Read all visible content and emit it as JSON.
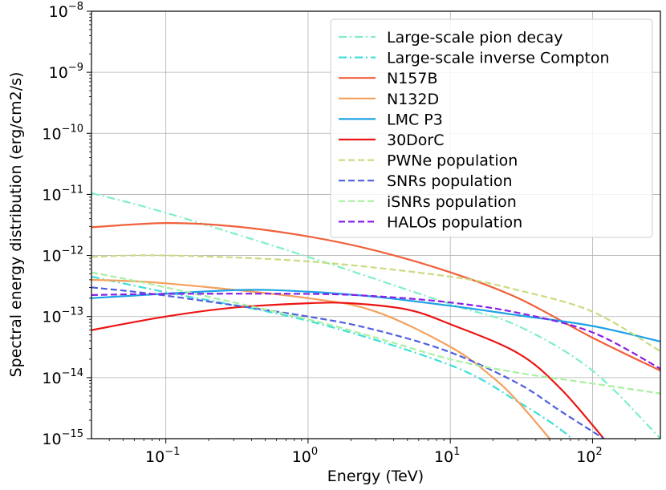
{
  "chart_data": {
    "type": "line",
    "title": "",
    "xlabel": "Energy (TeV)",
    "ylabel": "Spectral energy distribution (erg/cm2/s)",
    "xscale": "log",
    "yscale": "log",
    "xlim": [
      0.03,
      300
    ],
    "ylim": [
      1e-15,
      1e-08
    ],
    "grid": true,
    "legend_position": "top-right",
    "x_ticks": [
      {
        "base": "10",
        "exp": "−1",
        "value": 0.1
      },
      {
        "base": "10",
        "exp": "0",
        "value": 1
      },
      {
        "base": "10",
        "exp": "1",
        "value": 10
      },
      {
        "base": "10",
        "exp": "2",
        "value": 100
      }
    ],
    "y_ticks": [
      {
        "base": "10",
        "exp": "−15",
        "value": 1e-15
      },
      {
        "base": "10",
        "exp": "−14",
        "value": 1e-14
      },
      {
        "base": "10",
        "exp": "−13",
        "value": 1e-13
      },
      {
        "base": "10",
        "exp": "−12",
        "value": 1e-12
      },
      {
        "base": "10",
        "exp": "−11",
        "value": 1e-11
      },
      {
        "base": "10",
        "exp": "−10",
        "value": 1e-10
      },
      {
        "base": "10",
        "exp": "−9",
        "value": 1e-09
      },
      {
        "base": "10",
        "exp": "−8",
        "value": 1e-08
      }
    ],
    "series": [
      {
        "name": "Large-scale pion decay",
        "color": "#7ef0c4",
        "style": "dashdot",
        "x": [
          0.03,
          0.1,
          1,
          10,
          30,
          100,
          300
        ],
        "y": [
          1.05e-11,
          5e-12,
          9.5e-13,
          1.6e-13,
          7e-14,
          1.3e-14,
          1e-15
        ]
      },
      {
        "name": "Large-scale inverse Compton",
        "color": "#3ee0d8",
        "style": "dashdot",
        "x": [
          0.03,
          0.1,
          1,
          10,
          30,
          60,
          100
        ],
        "y": [
          4.5e-13,
          2.5e-13,
          8.5e-14,
          1.6e-14,
          4e-15,
          1.4e-15,
          5e-16
        ]
      },
      {
        "name": "N157B",
        "color": "#f0603a",
        "style": "solid",
        "x": [
          0.03,
          0.1,
          0.3,
          1,
          3,
          10,
          30,
          100,
          300
        ],
        "y": [
          2.9e-12,
          3.4e-12,
          3e-12,
          2.05e-12,
          1.2e-12,
          5.3e-13,
          2e-13,
          4.5e-14,
          1.3e-14
        ]
      },
      {
        "name": "N132D",
        "color": "#f4a05e",
        "style": "solid",
        "x": [
          0.03,
          0.1,
          1,
          3,
          10,
          20,
          30,
          50
        ],
        "y": [
          4e-13,
          3.5e-13,
          2e-13,
          1.2e-13,
          3.2e-14,
          1e-14,
          4e-15,
          1e-15
        ]
      },
      {
        "name": "LMC P3",
        "color": "#1ea2e6",
        "style": "solid",
        "x": [
          0.03,
          0.3,
          1,
          3,
          10,
          30,
          100,
          300
        ],
        "y": [
          2e-13,
          2.7e-13,
          2.55e-13,
          2.1e-13,
          1.5e-13,
          1.05e-13,
          7e-14,
          3.9e-14
        ]
      },
      {
        "name": "30DorC",
        "color": "#ec1414",
        "style": "solid",
        "x": [
          0.03,
          0.1,
          0.3,
          1,
          2,
          5,
          10,
          30,
          60,
          120
        ],
        "y": [
          6e-14,
          1e-13,
          1.4e-13,
          1.65e-13,
          1.65e-13,
          1.3e-13,
          7.5e-14,
          2.5e-14,
          6.5e-15,
          1e-15
        ]
      },
      {
        "name": "PWNe population",
        "color": "#c8dc80",
        "style": "dashed",
        "x": [
          0.03,
          0.1,
          1,
          10,
          30,
          100,
          300
        ],
        "y": [
          9.5e-13,
          1e-12,
          8e-13,
          4.5e-13,
          2.7e-13,
          1.2e-13,
          2.7e-14
        ]
      },
      {
        "name": "SNRs population",
        "color": "#4f5fe0",
        "style": "dashed",
        "x": [
          0.03,
          0.1,
          1,
          3,
          10,
          30,
          60,
          120
        ],
        "y": [
          3e-13,
          2.2e-13,
          1e-13,
          6e-14,
          2.6e-14,
          8e-15,
          2.8e-15,
          1e-15
        ]
      },
      {
        "name": "iSNRs population",
        "color": "#a8f0a0",
        "style": "dashed",
        "x": [
          0.03,
          0.1,
          1,
          3,
          10,
          30,
          100,
          300
        ],
        "y": [
          5.3e-13,
          3e-13,
          9e-14,
          4.5e-14,
          2e-14,
          1.2e-14,
          8e-15,
          5.5e-15
        ]
      },
      {
        "name": "HALOs population",
        "color": "#8a1ee8",
        "style": "dashed",
        "x": [
          0.03,
          0.1,
          1,
          3,
          10,
          30,
          100,
          300
        ],
        "y": [
          2.25e-13,
          2.35e-13,
          2.35e-13,
          2.15e-13,
          1.7e-13,
          1.15e-13,
          5.5e-14,
          1.4e-14
        ]
      }
    ]
  }
}
